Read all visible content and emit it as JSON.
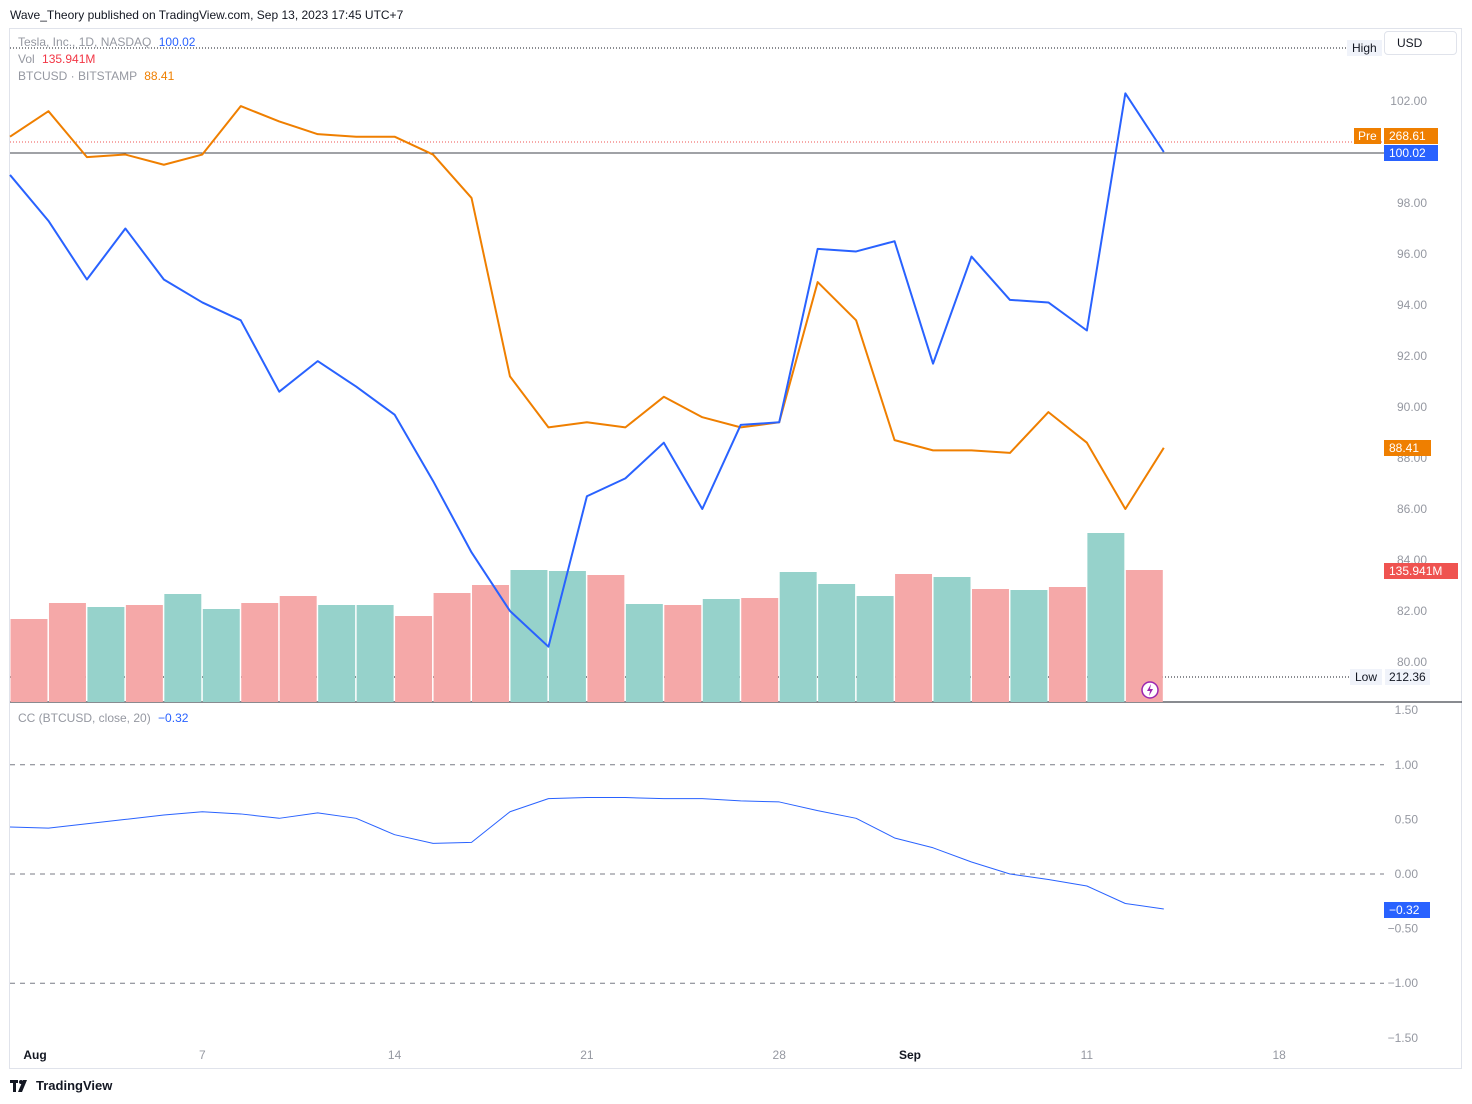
{
  "header": {
    "publisher": "Wave_Theory published on TradingView.com, Sep 13, 2023 17:45 UTC+7"
  },
  "legend": {
    "main_label": "Tesla, Inc., 1D, NASDAQ",
    "main_value": "100.02",
    "vol_label": "Vol",
    "vol_value": "135.941M",
    "btc_label": "BTCUSD · BITSTAMP",
    "btc_value": "88.41",
    "cc_label": "CC (BTCUSD, close, 20)",
    "cc_value": "−0.32"
  },
  "currency_button": "USD",
  "price_tags": {
    "high_label": "High",
    "pre_label": "Pre",
    "pre_value": "268.61",
    "last_value": "100.02",
    "btc_value": "88.41",
    "vol_value": "135.941M",
    "low_label": "Low",
    "low_value": "212.36",
    "cc_value": "−0.32"
  },
  "footer": {
    "brand": "TradingView"
  },
  "colors": {
    "tesla_line": "#2962ff",
    "btc_line": "#ef7f00",
    "volume_up": "#96d2cb",
    "volume_down": "#f5a8a8",
    "cc_line": "#2962ff"
  },
  "chart_data": [
    {
      "type": "line",
      "pane": "main",
      "x_axis": {
        "tick_labels": [
          "Aug",
          "7",
          "14",
          "21",
          "28",
          "Sep",
          "11",
          "18"
        ]
      },
      "y_axis": {
        "ticks": [
          "102.00",
          "100.00",
          "98.00",
          "96.00",
          "94.00",
          "92.00",
          "90.00",
          "88.00",
          "86.00",
          "84.00",
          "82.00",
          "80.00"
        ],
        "ylim": [
          79.4,
          103.6
        ]
      },
      "series": [
        {
          "name": "Tesla, Inc.",
          "color": "#2962ff",
          "values": [
            99.1,
            97.3,
            95.0,
            97.0,
            95.0,
            94.1,
            93.4,
            90.6,
            91.8,
            90.8,
            89.7,
            87.1,
            84.3,
            82.0,
            80.6,
            86.5,
            87.2,
            88.6,
            86.0,
            89.3,
            89.4,
            96.2,
            96.1,
            96.5,
            91.7,
            95.9,
            94.2,
            94.1,
            93.0,
            102.3,
            100.0
          ]
        },
        {
          "name": "BTCUSD · BITSTAMP",
          "color": "#ef7f00",
          "values": [
            100.6,
            101.6,
            99.8,
            99.9,
            99.5,
            99.9,
            101.8,
            101.2,
            100.7,
            100.6,
            100.6,
            99.9,
            98.2,
            91.2,
            89.2,
            89.4,
            89.2,
            90.4,
            89.6,
            89.2,
            89.4,
            94.9,
            93.4,
            88.7,
            88.3,
            88.3,
            88.2,
            89.8,
            88.6,
            86.0,
            88.4
          ]
        }
      ]
    },
    {
      "type": "bar",
      "pane": "volume",
      "series": [
        {
          "name": "Vol",
          "values": [
            83,
            99,
            95,
            97,
            108,
            93,
            99,
            106,
            97,
            97,
            86,
            109,
            117,
            132,
            131,
            127,
            98,
            97,
            103,
            104,
            130,
            118,
            106,
            128,
            125,
            113,
            112,
            115,
            169,
            132
          ],
          "direction": [
            "down",
            "down",
            "up",
            "down",
            "up",
            "up",
            "down",
            "down",
            "up",
            "up",
            "down",
            "down",
            "down",
            "up",
            "up",
            "down",
            "up",
            "down",
            "up",
            "down",
            "up",
            "up",
            "up",
            "down",
            "up",
            "down",
            "up",
            "down",
            "up",
            "down"
          ]
        }
      ],
      "last_value": "135.941M"
    },
    {
      "type": "line",
      "pane": "indicator",
      "y_axis": {
        "ticks": [
          "1.50",
          "1.00",
          "0.50",
          "0.00",
          "−0.50",
          "−1.00",
          "−1.50"
        ],
        "ylim": [
          -1.5,
          1.5
        ]
      },
      "series": [
        {
          "name": "CC (BTCUSD, close, 20)",
          "color": "#2962ff",
          "values": [
            0.43,
            0.42,
            0.46,
            0.5,
            0.54,
            0.57,
            0.55,
            0.51,
            0.56,
            0.51,
            0.36,
            0.28,
            0.29,
            0.57,
            0.69,
            0.7,
            0.7,
            0.69,
            0.69,
            0.67,
            0.66,
            0.58,
            0.51,
            0.33,
            0.24,
            0.11,
            0.0,
            -0.05,
            -0.11,
            -0.27,
            -0.32
          ]
        }
      ]
    }
  ]
}
